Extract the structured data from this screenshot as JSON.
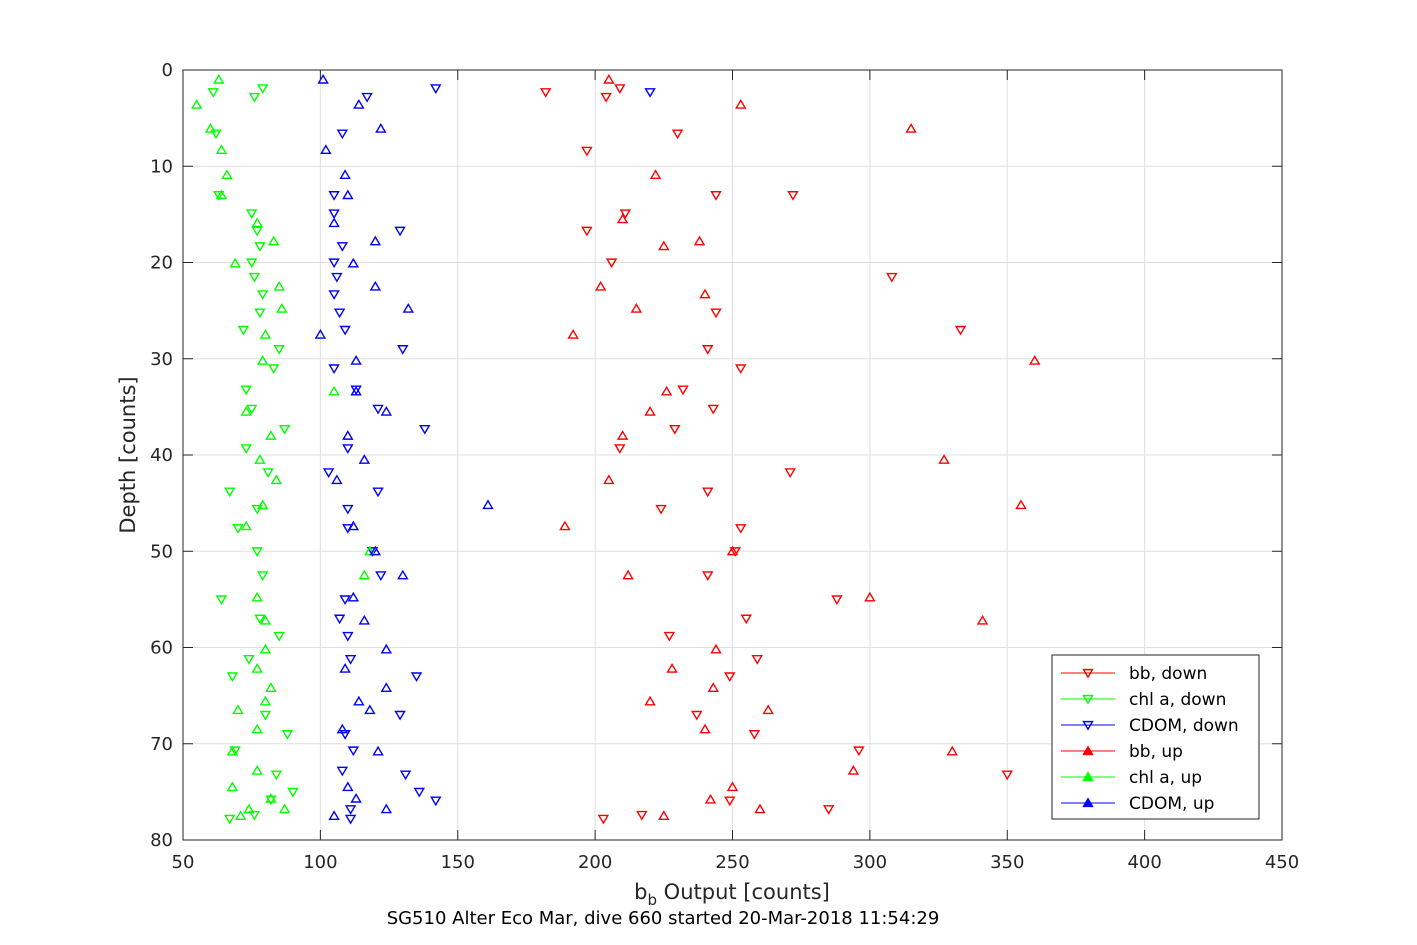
{
  "chart_data": {
    "type": "scatter",
    "title": "",
    "caption": "SG510 Alter Eco Mar, dive 660 started 20-Mar-2018 11:54:29",
    "xlabel_main": "b",
    "xlabel_sub": "b",
    "xlabel_rest": " Output [counts]",
    "ylabel": "Depth [counts]",
    "xlim": [
      50,
      450
    ],
    "ylim": [
      0,
      80
    ],
    "y_reversed": true,
    "grid": true,
    "legend_position": "bottom-right",
    "xticks": [
      "50",
      "100",
      "150",
      "200",
      "250",
      "300",
      "350",
      "400",
      "450"
    ],
    "yticks": [
      "0",
      "10",
      "20",
      "30",
      "40",
      "50",
      "60",
      "70",
      "80"
    ],
    "series": [
      {
        "name": "bb, down",
        "color": "#ff0000",
        "marker": "triangle-down",
        "points": [
          [
            182,
            2.3
          ],
          [
            204,
            2.8
          ],
          [
            209,
            1.9
          ],
          [
            230,
            6.6
          ],
          [
            197,
            8.4
          ],
          [
            244,
            13.0
          ],
          [
            272,
            13.0
          ],
          [
            211,
            14.9
          ],
          [
            197,
            16.7
          ],
          [
            206,
            20.0
          ],
          [
            308,
            21.5
          ],
          [
            244,
            25.2
          ],
          [
            333,
            27.0
          ],
          [
            241,
            29.0
          ],
          [
            253,
            31.0
          ],
          [
            232,
            33.2
          ],
          [
            243,
            35.2
          ],
          [
            229,
            37.3
          ],
          [
            209,
            39.3
          ],
          [
            271,
            41.8
          ],
          [
            241,
            43.8
          ],
          [
            224,
            45.6
          ],
          [
            253,
            47.6
          ],
          [
            251,
            50.0
          ],
          [
            241,
            52.5
          ],
          [
            288,
            55.0
          ],
          [
            255,
            57.0
          ],
          [
            227,
            58.8
          ],
          [
            259,
            61.2
          ],
          [
            249,
            63.0
          ],
          [
            237,
            67.0
          ],
          [
            258,
            69.0
          ],
          [
            296,
            70.7
          ],
          [
            350,
            73.2
          ],
          [
            249,
            75.9
          ],
          [
            285,
            76.8
          ],
          [
            217,
            77.4
          ],
          [
            203,
            77.8
          ]
        ]
      },
      {
        "name": "chl a, down",
        "color": "#00ff00",
        "marker": "triangle-down",
        "points": [
          [
            61,
            2.3
          ],
          [
            76,
            2.8
          ],
          [
            79,
            1.9
          ],
          [
            62,
            6.6
          ],
          [
            63,
            13.0
          ],
          [
            75,
            14.9
          ],
          [
            77,
            16.7
          ],
          [
            78,
            18.3
          ],
          [
            75,
            20.0
          ],
          [
            76,
            21.5
          ],
          [
            79,
            23.3
          ],
          [
            78,
            25.2
          ],
          [
            72,
            27.0
          ],
          [
            85,
            29.0
          ],
          [
            83,
            31.0
          ],
          [
            73,
            33.2
          ],
          [
            75,
            35.2
          ],
          [
            87,
            37.3
          ],
          [
            73,
            39.3
          ],
          [
            81,
            41.8
          ],
          [
            67,
            43.8
          ],
          [
            77,
            45.6
          ],
          [
            70,
            47.6
          ],
          [
            77,
            50.0
          ],
          [
            79,
            52.5
          ],
          [
            64,
            55.0
          ],
          [
            78,
            57.0
          ],
          [
            85,
            58.8
          ],
          [
            74,
            61.2
          ],
          [
            68,
            63.0
          ],
          [
            80,
            67.0
          ],
          [
            88,
            69.0
          ],
          [
            69,
            70.7
          ],
          [
            84,
            73.2
          ],
          [
            90,
            75.0
          ],
          [
            76,
            77.4
          ],
          [
            67,
            77.8
          ],
          [
            82,
            75.8
          ]
        ]
      },
      {
        "name": "CDOM, down",
        "color": "#0000ff",
        "marker": "triangle-down",
        "points": [
          [
            142,
            1.9
          ],
          [
            220,
            2.3
          ],
          [
            117,
            2.8
          ],
          [
            108,
            6.6
          ],
          [
            105,
            13.0
          ],
          [
            105,
            14.9
          ],
          [
            129,
            16.7
          ],
          [
            108,
            18.3
          ],
          [
            105,
            20.0
          ],
          [
            106,
            21.5
          ],
          [
            105,
            23.3
          ],
          [
            107,
            25.2
          ],
          [
            109,
            27.0
          ],
          [
            130,
            29.0
          ],
          [
            105,
            31.0
          ],
          [
            113,
            33.2
          ],
          [
            121,
            35.2
          ],
          [
            138,
            37.3
          ],
          [
            110,
            39.3
          ],
          [
            103,
            41.8
          ],
          [
            121,
            43.8
          ],
          [
            110,
            45.6
          ],
          [
            110,
            47.6
          ],
          [
            119,
            50.0
          ],
          [
            122,
            52.5
          ],
          [
            109,
            55.0
          ],
          [
            107,
            57.0
          ],
          [
            110,
            58.8
          ],
          [
            111,
            61.2
          ],
          [
            135,
            63.0
          ],
          [
            129,
            67.0
          ],
          [
            109,
            69.0
          ],
          [
            112,
            70.7
          ],
          [
            108,
            72.8
          ],
          [
            131,
            73.2
          ],
          [
            136,
            75.0
          ],
          [
            142,
            75.9
          ],
          [
            111,
            76.8
          ],
          [
            111,
            77.8
          ]
        ]
      },
      {
        "name": "bb, up",
        "color": "#ff0000",
        "marker": "triangle-up",
        "points": [
          [
            205,
            1.0
          ],
          [
            253,
            3.6
          ],
          [
            315,
            6.1
          ],
          [
            222,
            10.9
          ],
          [
            210,
            15.5
          ],
          [
            238,
            17.8
          ],
          [
            225,
            18.3
          ],
          [
            202,
            22.5
          ],
          [
            240,
            23.3
          ],
          [
            215,
            24.8
          ],
          [
            192,
            27.5
          ],
          [
            360,
            30.2
          ],
          [
            226,
            33.4
          ],
          [
            220,
            35.5
          ],
          [
            210,
            38.0
          ],
          [
            327,
            40.5
          ],
          [
            205,
            42.6
          ],
          [
            355,
            45.2
          ],
          [
            189,
            47.4
          ],
          [
            250,
            50.0
          ],
          [
            212,
            52.5
          ],
          [
            300,
            54.8
          ],
          [
            341,
            57.2
          ],
          [
            244,
            60.2
          ],
          [
            228,
            62.2
          ],
          [
            243,
            64.2
          ],
          [
            220,
            65.6
          ],
          [
            263,
            66.5
          ],
          [
            240,
            68.5
          ],
          [
            330,
            70.8
          ],
          [
            294,
            72.8
          ],
          [
            250,
            74.5
          ],
          [
            242,
            75.8
          ],
          [
            260,
            76.8
          ],
          [
            225,
            77.5
          ]
        ]
      },
      {
        "name": "chl a, up",
        "color": "#00ff00",
        "marker": "triangle-up",
        "points": [
          [
            63,
            1.0
          ],
          [
            55,
            3.6
          ],
          [
            60,
            6.1
          ],
          [
            64,
            8.3
          ],
          [
            66,
            10.9
          ],
          [
            64,
            13.0
          ],
          [
            77,
            15.9
          ],
          [
            83,
            17.8
          ],
          [
            69,
            20.1
          ],
          [
            85,
            22.5
          ],
          [
            86,
            24.8
          ],
          [
            80,
            27.5
          ],
          [
            79,
            30.2
          ],
          [
            105,
            33.4
          ],
          [
            73,
            35.5
          ],
          [
            82,
            38.0
          ],
          [
            78,
            40.5
          ],
          [
            84,
            42.6
          ],
          [
            79,
            45.2
          ],
          [
            73,
            47.4
          ],
          [
            118,
            50.0
          ],
          [
            116,
            52.5
          ],
          [
            77,
            54.8
          ],
          [
            80,
            57.2
          ],
          [
            80,
            60.2
          ],
          [
            77,
            62.2
          ],
          [
            82,
            64.2
          ],
          [
            80,
            65.6
          ],
          [
            70,
            66.5
          ],
          [
            77,
            68.5
          ],
          [
            68,
            70.8
          ],
          [
            77,
            72.8
          ],
          [
            68,
            74.5
          ],
          [
            82,
            75.7
          ],
          [
            87,
            76.8
          ],
          [
            74,
            76.8
          ],
          [
            71,
            77.5
          ]
        ]
      },
      {
        "name": "CDOM, up",
        "color": "#0000ff",
        "marker": "triangle-up",
        "points": [
          [
            101,
            1.0
          ],
          [
            114,
            3.6
          ],
          [
            122,
            6.1
          ],
          [
            102,
            8.3
          ],
          [
            109,
            10.9
          ],
          [
            110,
            13.0
          ],
          [
            105,
            15.9
          ],
          [
            120,
            17.8
          ],
          [
            112,
            20.1
          ],
          [
            120,
            22.5
          ],
          [
            132,
            24.8
          ],
          [
            100,
            27.5
          ],
          [
            113,
            30.2
          ],
          [
            113,
            33.4
          ],
          [
            124,
            35.5
          ],
          [
            110,
            38.0
          ],
          [
            116,
            40.5
          ],
          [
            106,
            42.6
          ],
          [
            161,
            45.2
          ],
          [
            112,
            47.4
          ],
          [
            120,
            50.0
          ],
          [
            130,
            52.5
          ],
          [
            112,
            54.8
          ],
          [
            116,
            57.2
          ],
          [
            124,
            60.2
          ],
          [
            109,
            62.2
          ],
          [
            124,
            64.2
          ],
          [
            114,
            65.6
          ],
          [
            118,
            66.5
          ],
          [
            108,
            68.5
          ],
          [
            121,
            70.8
          ],
          [
            113,
            75.7
          ],
          [
            124,
            76.8
          ],
          [
            105,
            77.5
          ],
          [
            110,
            74.5
          ]
        ]
      }
    ]
  }
}
